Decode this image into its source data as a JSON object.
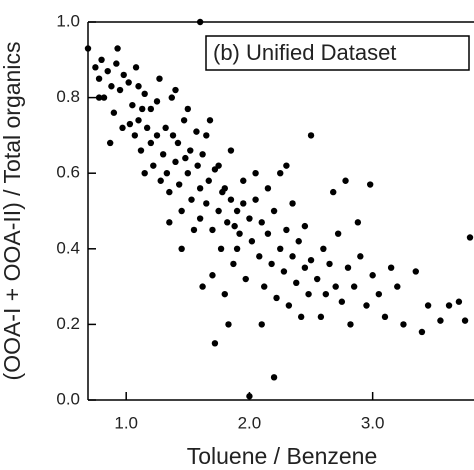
{
  "chart_data": {
    "type": "scatter",
    "annotation": "(b) Unified Dataset",
    "x_label": "Toluene / Benzene",
    "y_label": "(OOA-I + OOA-II) / Total organics",
    "color": "#000000",
    "xlim": [
      0.69,
      3.79
    ],
    "ylim": [
      0,
      1
    ],
    "xticks": [
      {
        "value": 1,
        "label": "1.0"
      },
      {
        "value": 2,
        "label": "2.0"
      },
      {
        "value": 3,
        "label": "3.0"
      }
    ],
    "yticks": [
      {
        "value": 0,
        "label": "0.0"
      },
      0.2,
      0.4,
      0.6,
      0.8,
      {
        "value": 1,
        "label": "1.0"
      }
    ],
    "x": [
      0.75,
      0.78,
      0.8,
      0.82,
      0.85,
      0.88,
      0.9,
      0.92,
      0.95,
      0.97,
      0.98,
      0.78,
      0.87,
      0.93,
      1.02,
      1.05,
      1.07,
      1.08,
      1.1,
      1.12,
      1.15,
      1.17,
      1.2,
      1.22,
      1.25,
      1.27,
      1.28,
      1.1,
      1.15,
      1.2,
      1.25,
      1.03,
      1.13,
      1.3,
      1.32,
      1.35,
      1.37,
      1.4,
      1.42,
      1.45,
      1.47,
      1.5,
      1.52,
      1.55,
      1.57,
      1.6,
      1.33,
      1.38,
      1.43,
      1.48,
      1.53,
      1.58,
      1.4,
      1.45,
      1.5,
      1.35,
      1.6,
      1.62,
      1.65,
      1.67,
      1.7,
      1.72,
      1.75,
      1.77,
      1.8,
      1.82,
      1.85,
      1.87,
      1.9,
      1.92,
      1.95,
      1.97,
      2.0,
      1.65,
      1.7,
      1.75,
      1.8,
      1.85,
      1.9,
      1.95,
      1.68,
      1.78,
      1.88,
      1.62,
      1.72,
      1.83,
      2.02,
      2.05,
      2.08,
      2.1,
      2.12,
      2.15,
      2.18,
      2.2,
      2.22,
      2.25,
      2.28,
      2.3,
      2.32,
      2.35,
      2.38,
      2.4,
      2.42,
      2.45,
      2.48,
      2.5,
      2.05,
      2.15,
      2.25,
      2.35,
      2.45,
      2.1,
      2.2,
      2.0,
      2.5,
      2.3,
      2.55,
      2.6,
      2.62,
      2.65,
      2.7,
      2.72,
      2.75,
      2.8,
      2.85,
      2.9,
      2.95,
      3.0,
      2.68,
      2.78,
      2.88,
      2.58,
      2.82,
      2.98,
      3.05,
      3.1,
      3.2,
      3.25,
      3.35,
      3.45,
      3.55,
      3.62,
      3.7,
      3.75,
      3.79,
      3.15,
      3.4,
      0.69,
      1.6
    ],
    "values": [
      0.88,
      0.85,
      0.9,
      0.8,
      0.87,
      0.83,
      0.76,
      0.89,
      0.82,
      0.72,
      0.86,
      0.8,
      0.68,
      0.93,
      0.84,
      0.78,
      0.7,
      0.88,
      0.74,
      0.66,
      0.81,
      0.72,
      0.77,
      0.62,
      0.7,
      0.85,
      0.58,
      0.83,
      0.6,
      0.68,
      0.79,
      0.73,
      0.77,
      0.65,
      0.72,
      0.55,
      0.8,
      0.63,
      0.68,
      0.5,
      0.74,
      0.6,
      0.66,
      0.45,
      0.71,
      0.56,
      0.6,
      0.7,
      0.57,
      0.64,
      0.53,
      0.62,
      0.82,
      0.4,
      0.77,
      0.47,
      0.48,
      0.65,
      0.52,
      0.58,
      0.45,
      0.61,
      0.5,
      0.4,
      0.56,
      0.47,
      0.53,
      0.36,
      0.5,
      0.44,
      0.58,
      0.32,
      0.48,
      0.7,
      0.33,
      0.62,
      0.28,
      0.66,
      0.4,
      0.52,
      0.74,
      0.55,
      0.46,
      0.3,
      0.15,
      0.2,
      0.42,
      0.53,
      0.38,
      0.47,
      0.3,
      0.44,
      0.36,
      0.5,
      0.27,
      0.4,
      0.34,
      0.45,
      0.25,
      0.38,
      0.31,
      0.42,
      0.22,
      0.35,
      0.28,
      0.37,
      0.6,
      0.56,
      0.6,
      0.52,
      0.46,
      0.2,
      0.06,
      0.01,
      0.7,
      0.62,
      0.32,
      0.4,
      0.28,
      0.36,
      0.3,
      0.44,
      0.26,
      0.35,
      0.3,
      0.38,
      0.25,
      0.33,
      0.55,
      0.58,
      0.47,
      0.22,
      0.2,
      0.57,
      0.28,
      0.22,
      0.3,
      0.2,
      0.34,
      0.25,
      0.21,
      0.25,
      0.26,
      0.21,
      0.43,
      0.35,
      0.18,
      0.93,
      1.0
    ]
  }
}
